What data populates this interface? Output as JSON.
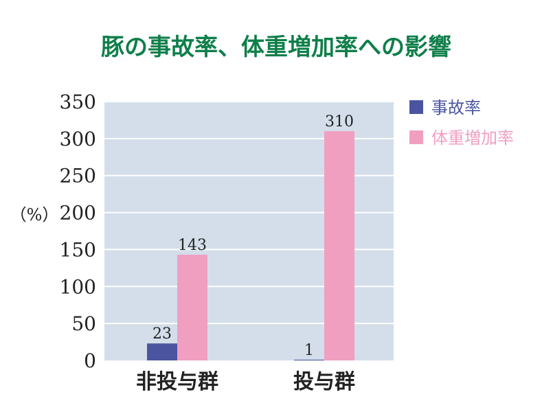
{
  "chart_data": {
    "type": "bar",
    "title": "豚の事故率、体重増加率への影響",
    "ylabel": "（%）",
    "xlabel": "",
    "categories": [
      "非投与群",
      "投与群"
    ],
    "series": [
      {
        "name": "事故率",
        "values": [
          23,
          1
        ],
        "color": "#4b559f"
      },
      {
        "name": "体重増加率",
        "values": [
          143,
          310
        ],
        "color": "#f09fc0"
      }
    ],
    "ylim": [
      0,
      350
    ],
    "yticks": [
      0,
      50,
      100,
      150,
      200,
      250,
      300,
      350
    ],
    "grid": true,
    "legend_position": "right",
    "data_labels": true,
    "colors": {
      "title": "#0f7f4a",
      "plot_background": "#d3deea",
      "gridline": "#ffffff",
      "text": "#222222"
    }
  }
}
